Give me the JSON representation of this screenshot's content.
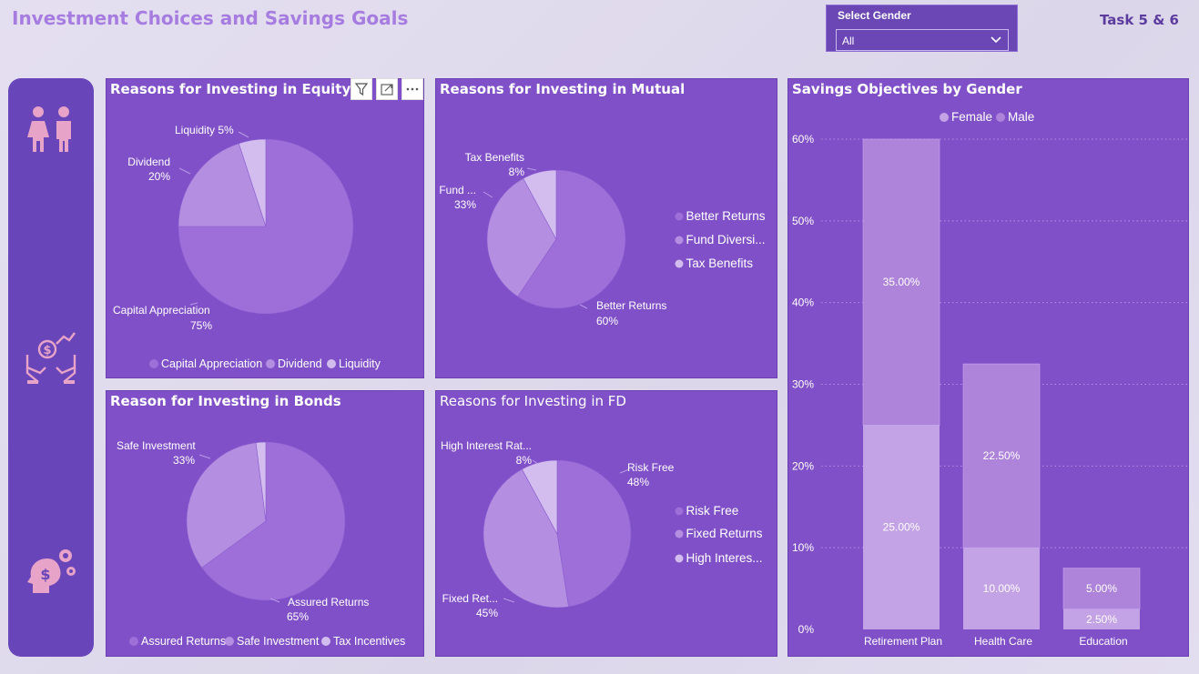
{
  "header": {
    "title": "Investment Choices and Savings Goals",
    "task": "Task 5 & 6"
  },
  "slicer": {
    "title": "Select Gender",
    "value": "All"
  },
  "nav": {
    "icons": [
      "gender-icon",
      "investment-hands-icon",
      "financial-mind-icon"
    ]
  },
  "toolbar": {
    "icons": [
      "filter-icon",
      "focus-mode-icon",
      "more-options-icon"
    ]
  },
  "colors": {
    "card": "#8050c8",
    "slice_dark": "#9e6fd8",
    "slice_mid": "#b48ee0",
    "slice_light": "#d2bdee",
    "female": "#c3a2e6",
    "male": "#ae83da"
  },
  "chart_data": [
    {
      "id": "equity",
      "type": "pie",
      "title": "Reasons for Investing in Equity",
      "slices": [
        {
          "name": "Capital Appreciation",
          "value": 75,
          "label_name": "Capital Appreciation",
          "label_value": "75%"
        },
        {
          "name": "Dividend",
          "value": 20,
          "label_name": "Dividend",
          "label_value": "20%"
        },
        {
          "name": "Liquidity",
          "value": 5,
          "label_name": "Liquidity 5%",
          "label_value": ""
        }
      ],
      "legend": [
        "Capital Appreciation",
        "Dividend",
        "Liquidity"
      ],
      "legend_position": "bottom"
    },
    {
      "id": "mutual",
      "type": "pie",
      "title": "Reasons for Investing in Mutual",
      "slices": [
        {
          "name": "Better Returns",
          "value": 60,
          "label_name": "Better Returns",
          "label_value": "60%"
        },
        {
          "name": "Fund Diversification",
          "value": 33,
          "label_name": "Fund ...",
          "label_value": "33%"
        },
        {
          "name": "Tax Benefits",
          "value": 8,
          "label_name": "Tax Benefits",
          "label_value": "8%"
        }
      ],
      "legend": [
        "Better Returns",
        "Fund Diversi...",
        "Tax Benefits"
      ],
      "legend_position": "right"
    },
    {
      "id": "bonds",
      "type": "pie",
      "title": "Reason for Investing in Bonds",
      "slices": [
        {
          "name": "Assured Returns",
          "value": 65,
          "label_name": "Assured Returns",
          "label_value": "65%"
        },
        {
          "name": "Safe Investment",
          "value": 33,
          "label_name": "Safe Investment",
          "label_value": "33%"
        },
        {
          "name": "Tax Incentives",
          "value": 2,
          "label_name": "",
          "label_value": ""
        }
      ],
      "legend": [
        "Assured Returns",
        "Safe Investment",
        "Tax Incentives"
      ],
      "legend_position": "bottom"
    },
    {
      "id": "fd",
      "type": "pie",
      "title": "Reasons for Investing in FD",
      "slices": [
        {
          "name": "Risk Free",
          "value": 48,
          "label_name": "Risk Free",
          "label_value": "48%"
        },
        {
          "name": "Fixed Returns",
          "value": 45,
          "label_name": "Fixed Ret...",
          "label_value": "45%"
        },
        {
          "name": "High Interest Rates",
          "value": 8,
          "label_name": "High Interest Rat...",
          "label_value": "8%"
        }
      ],
      "legend": [
        "Risk Free",
        "Fixed Returns",
        "High Interes..."
      ],
      "legend_position": "right"
    },
    {
      "id": "savings",
      "type": "bar",
      "stacked": true,
      "title": "Savings Objectives by Gender",
      "categories": [
        "Retirement Plan",
        "Health Care",
        "Education"
      ],
      "series": [
        {
          "name": "Female",
          "values": [
            25,
            10,
            2.5
          ],
          "labels": [
            "25.00%",
            "10.00%",
            "2.50%"
          ]
        },
        {
          "name": "Male",
          "values": [
            35,
            22.5,
            5
          ],
          "labels": [
            "35.00%",
            "22.50%",
            "5.00%"
          ]
        }
      ],
      "yticks": [
        "0%",
        "10%",
        "20%",
        "30%",
        "40%",
        "50%",
        "60%"
      ],
      "ylim": [
        0,
        60
      ],
      "legend_position": "top",
      "grid": true
    }
  ]
}
